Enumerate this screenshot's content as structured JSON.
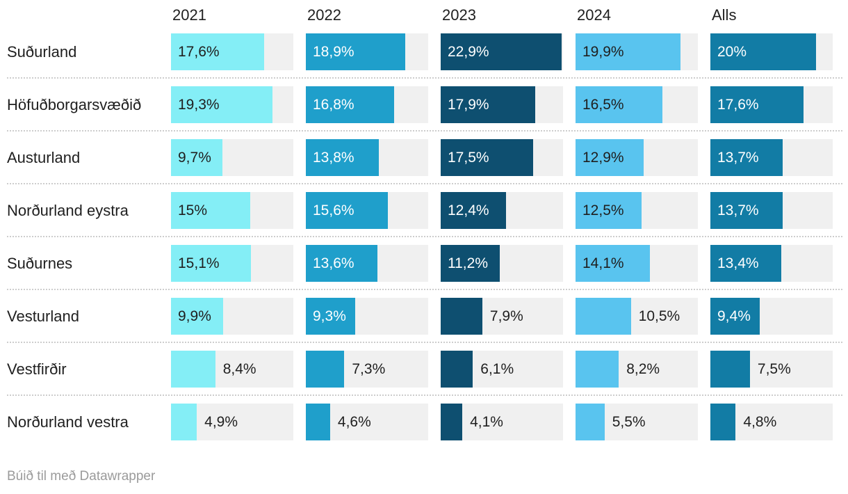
{
  "footer": {
    "attribution": "Búið til með Datawrapper"
  },
  "chart_data": {
    "type": "bar",
    "orientation": "horizontal",
    "title": "",
    "xlabel": "",
    "ylabel": "",
    "xlim": [
      0,
      23.2
    ],
    "grid": false,
    "value_suffix": "%",
    "track_color": "#f0f0f0",
    "outside_label_color": "#1f1f1f",
    "categories": [
      "Suðurland",
      "Höfuðborgarsvæðið",
      "Austurland",
      "Norðurland eystra",
      "Suðurnes",
      "Vesturland",
      "Vestfirðir",
      "Norðurland vestra"
    ],
    "series": [
      {
        "name": "2021",
        "color": "#84EEF6",
        "label_color": "#1f1f1f",
        "values": [
          17.6,
          19.3,
          9.7,
          15,
          15.1,
          9.9,
          8.4,
          4.9
        ],
        "labels": [
          "17,6%",
          "19,3%",
          "9,7%",
          "15%",
          "15,1%",
          "9,9%",
          "8,4%",
          "4,9%"
        ],
        "label_inside": [
          true,
          true,
          true,
          true,
          true,
          true,
          false,
          false
        ]
      },
      {
        "name": "2022",
        "color": "#1F9FCB",
        "label_color": "#ffffff",
        "values": [
          18.9,
          16.8,
          13.8,
          15.6,
          13.6,
          9.3,
          7.3,
          4.6
        ],
        "labels": [
          "18,9%",
          "16,8%",
          "13,8%",
          "15,6%",
          "13,6%",
          "9,3%",
          "7,3%",
          "4,6%"
        ],
        "label_inside": [
          true,
          true,
          true,
          true,
          true,
          true,
          false,
          false
        ]
      },
      {
        "name": "2023",
        "color": "#0E4F70",
        "label_color": "#ffffff",
        "values": [
          22.9,
          17.9,
          17.5,
          12.4,
          11.2,
          7.9,
          6.1,
          4.1
        ],
        "labels": [
          "22,9%",
          "17,9%",
          "17,5%",
          "12,4%",
          "11,2%",
          "7,9%",
          "6,1%",
          "4,1%"
        ],
        "label_inside": [
          true,
          true,
          true,
          true,
          true,
          false,
          false,
          false
        ]
      },
      {
        "name": "2024",
        "color": "#59C4EF",
        "label_color": "#1f1f1f",
        "values": [
          19.9,
          16.5,
          12.9,
          12.5,
          14.1,
          10.5,
          8.2,
          5.5
        ],
        "labels": [
          "19,9%",
          "16,5%",
          "12,9%",
          "12,5%",
          "14,1%",
          "10,5%",
          "8,2%",
          "5,5%"
        ],
        "label_inside": [
          true,
          true,
          true,
          true,
          true,
          false,
          false,
          false
        ]
      },
      {
        "name": "Alls",
        "color": "#127CA5",
        "label_color": "#ffffff",
        "values": [
          20,
          17.6,
          13.7,
          13.7,
          13.4,
          9.4,
          7.5,
          4.8
        ],
        "labels": [
          "20%",
          "17,6%",
          "13,7%",
          "13,7%",
          "13,4%",
          "9,4%",
          "7,5%",
          "4,8%"
        ],
        "label_inside": [
          true,
          true,
          true,
          true,
          true,
          true,
          false,
          false
        ]
      }
    ]
  }
}
